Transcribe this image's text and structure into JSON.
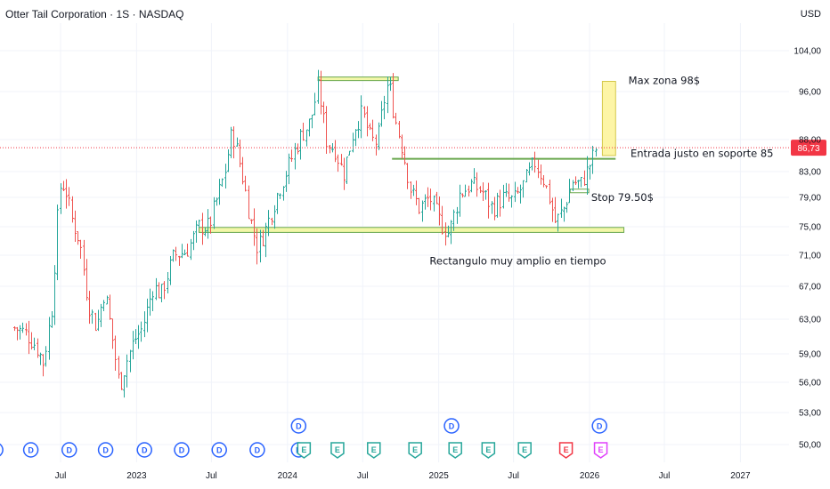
{
  "header": {
    "symbol_title": "Otter Tail Corporation · 1S · NASDAQ",
    "currency": "USD"
  },
  "chart_data": {
    "type": "candlestick",
    "symbol": "Otter Tail Corporation",
    "interval": "1S",
    "exchange": "NASDAQ",
    "y_ticks": [
      "104,00",
      "96,00",
      "88,00",
      "83,00",
      "79,00",
      "75,00",
      "71,00",
      "67,00",
      "63,00",
      "59,00",
      "56,00",
      "53,00",
      "50,00"
    ],
    "y_tick_values": [
      104,
      96,
      88,
      83,
      79,
      75,
      71,
      67,
      63,
      59,
      56,
      53,
      50
    ],
    "ylim": [
      48.5,
      109
    ],
    "x_ticks": [
      "Jul",
      "2023",
      "Jul",
      "2024",
      "Jul",
      "2025",
      "Jul",
      "2026",
      "Jul",
      "2027"
    ],
    "x_tick_dates": [
      "2022-07-01",
      "2023-01-01",
      "2023-07-01",
      "2024-01-01",
      "2024-07-01",
      "2025-01-01",
      "2025-07-01",
      "2026-01-01",
      "2026-07-01",
      "2027-01-01"
    ],
    "current_price": {
      "value": 86.73,
      "label": "86,73",
      "color": "#f23645"
    },
    "price_path": [
      [
        "2022-03-10",
        62.0
      ],
      [
        "2022-04-05",
        61.5
      ],
      [
        "2022-05-01",
        60.0
      ],
      [
        "2022-05-20",
        58.0
      ],
      [
        "2022-06-10",
        64.5
      ],
      [
        "2022-06-28",
        80.5
      ],
      [
        "2022-07-10",
        81.0
      ],
      [
        "2022-07-25",
        76.5
      ],
      [
        "2022-08-15",
        73.0
      ],
      [
        "2022-09-05",
        65.0
      ],
      [
        "2022-09-25",
        62.0
      ],
      [
        "2022-10-15",
        66.5
      ],
      [
        "2022-11-05",
        60.0
      ],
      [
        "2022-11-20",
        55.5
      ],
      [
        "2022-12-05",
        58.0
      ],
      [
        "2022-12-25",
        60.5
      ],
      [
        "2023-01-15",
        62.0
      ],
      [
        "2023-02-10",
        67.0
      ],
      [
        "2023-03-01",
        66.0
      ],
      [
        "2023-04-01",
        71.0
      ],
      [
        "2023-05-01",
        71.5
      ],
      [
        "2023-06-01",
        75.0
      ],
      [
        "2023-06-25",
        75.0
      ],
      [
        "2023-07-15",
        79.0
      ],
      [
        "2023-08-01",
        82.5
      ],
      [
        "2023-08-20",
        89.5
      ],
      [
        "2023-09-10",
        83.5
      ],
      [
        "2023-10-01",
        76.5
      ],
      [
        "2023-10-20",
        72.0
      ],
      [
        "2023-11-05",
        74.0
      ],
      [
        "2023-12-01",
        78.5
      ],
      [
        "2024-01-01",
        83.5
      ],
      [
        "2024-02-01",
        88.5
      ],
      [
        "2024-02-25",
        91.0
      ],
      [
        "2024-03-15",
        97.0
      ],
      [
        "2024-04-05",
        87.5
      ],
      [
        "2024-04-25",
        86.5
      ],
      [
        "2024-05-15",
        82.5
      ],
      [
        "2024-06-10",
        90.0
      ],
      [
        "2024-06-30",
        92.5
      ],
      [
        "2024-07-20",
        88.0
      ],
      [
        "2024-08-05",
        87.5
      ],
      [
        "2024-08-20",
        94.0
      ],
      [
        "2024-09-01",
        98.0
      ],
      [
        "2024-09-15",
        92.0
      ],
      [
        "2024-10-05",
        86.5
      ],
      [
        "2024-10-25",
        80.0
      ],
      [
        "2024-11-15",
        77.5
      ],
      [
        "2024-12-10",
        79.0
      ],
      [
        "2025-01-05",
        75.5
      ],
      [
        "2025-01-25",
        74.0
      ],
      [
        "2025-02-20",
        79.5
      ],
      [
        "2025-03-20",
        81.0
      ],
      [
        "2025-04-15",
        80.0
      ],
      [
        "2025-05-10",
        77.5
      ],
      [
        "2025-06-05",
        79.0
      ],
      [
        "2025-06-30",
        78.5
      ],
      [
        "2025-07-25",
        81.0
      ],
      [
        "2025-08-20",
        84.5
      ],
      [
        "2025-09-10",
        82.0
      ],
      [
        "2025-09-25",
        79.0
      ],
      [
        "2025-10-10",
        75.5
      ],
      [
        "2025-10-30",
        77.5
      ],
      [
        "2025-11-20",
        81.5
      ],
      [
        "2025-12-10",
        81.0
      ],
      [
        "2025-12-25",
        83.0
      ],
      [
        "2026-01-10",
        85.5
      ],
      [
        "2026-01-20",
        87.5
      ]
    ],
    "drawings": [
      {
        "kind": "range",
        "date_from": "2023-06-01",
        "date_to": "2026-03-25",
        "y_low": 74.2,
        "y_high": 74.9,
        "fill": "#f3f7a8",
        "stroke": "#6aa84f"
      },
      {
        "kind": "range",
        "date_from": "2024-03-15",
        "date_to": "2024-09-25",
        "y_low": 98.3,
        "y_high": 98.7,
        "fill": "#f3f7a8",
        "stroke": "#6aa84f"
      },
      {
        "kind": "line",
        "date_from": "2024-09-10",
        "date_to": "2026-03-05",
        "y": 85.0,
        "color": "#6aa84f"
      },
      {
        "kind": "range",
        "date_from": "2025-11-15",
        "date_to": "2025-12-30",
        "y_low": 79.8,
        "y_high": 80.2,
        "fill": "#ffffff",
        "stroke": "#6aa84f"
      },
      {
        "kind": "box",
        "date_from": "2026-02-01",
        "date_to": "2026-03-05",
        "y_low": 85.5,
        "y_high": 98.0,
        "fill": "#fdf5a6",
        "stroke": "#d4c84a"
      }
    ],
    "annotations": [
      {
        "text": "Max zona 98$",
        "date": "2026-04-05",
        "y": 97.5
      },
      {
        "text": "Entrada justo en soporte 85",
        "date": "2026-04-10",
        "y": 85.3
      },
      {
        "text": "Stop 79.50$",
        "date": "2026-01-05",
        "y": 78.5
      },
      {
        "text": "Rectangulo muy amplio en tiempo",
        "date": "2024-12-10",
        "y": 69.8
      }
    ],
    "events": {
      "dividends_bottom": [
        "2022-01-25",
        "2022-04-20",
        "2022-07-22",
        "2022-10-18",
        "2023-01-20",
        "2023-04-20",
        "2023-07-20",
        "2023-10-20",
        "2024-01-28"
      ],
      "dividends_top": [
        "2024-01-28",
        "2025-02-01",
        "2026-01-25"
      ],
      "earnings": [
        "2024-02-10",
        "2024-05-01",
        "2024-07-28",
        "2024-11-05",
        "2025-02-10",
        "2025-05-01",
        "2025-07-28",
        "2025-11-05",
        "2026-01-28"
      ],
      "dividend_letter": "D",
      "earnings_letter": "E"
    }
  }
}
